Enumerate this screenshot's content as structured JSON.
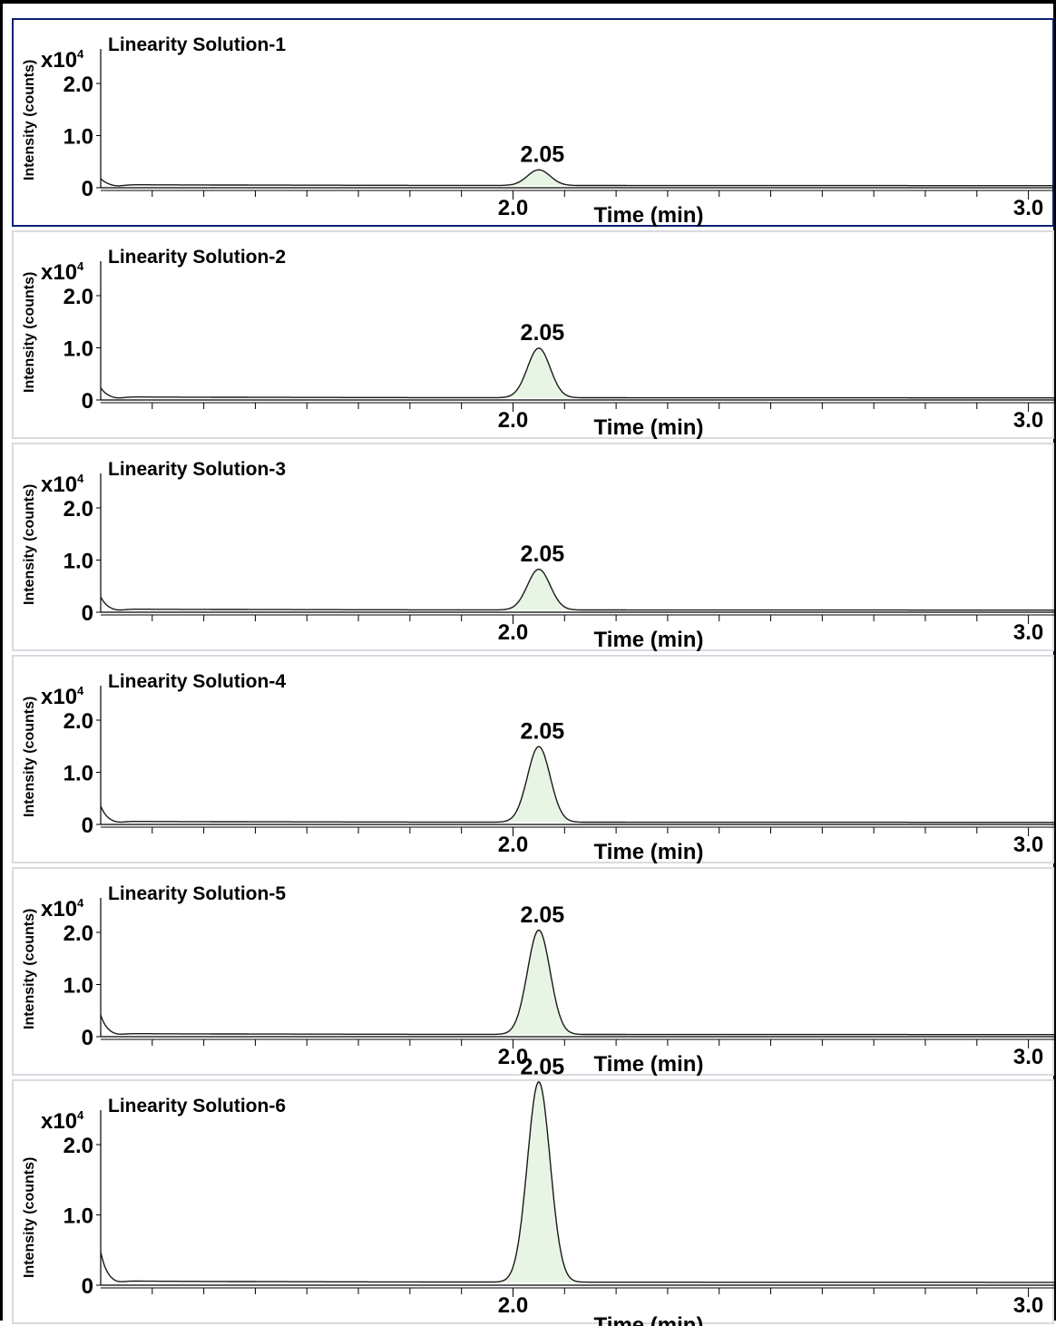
{
  "chart_data": [
    {
      "type": "line",
      "title": "Linearity Solution-1",
      "ylabel": "Intensity (counts)",
      "xlabel": "Time (min)",
      "y_scale_label": "x10",
      "y_scale_exponent": "4",
      "x_tick_labels": [
        "2.0",
        "3.0"
      ],
      "y_tick_labels": [
        "0",
        "1.0",
        "2.0"
      ],
      "peak": {
        "label": "2.05",
        "x": 2.05,
        "height": 0.3
      },
      "ylim": [
        0,
        2.0
      ],
      "selected": true
    },
    {
      "type": "line",
      "title": "Linearity Solution-2",
      "ylabel": "Intensity (counts)",
      "xlabel": "Time (min)",
      "y_scale_label": "x10",
      "y_scale_exponent": "4",
      "x_tick_labels": [
        "2.0",
        "3.0"
      ],
      "y_tick_labels": [
        "0",
        "1.0",
        "2.0"
      ],
      "peak": {
        "label": "2.05",
        "x": 2.05,
        "height": 0.95
      },
      "ylim": [
        0,
        2.0
      ],
      "selected": false
    },
    {
      "type": "line",
      "title": "Linearity Solution-3",
      "ylabel": "Intensity (counts)",
      "xlabel": "Time (min)",
      "y_scale_label": "x10",
      "y_scale_exponent": "4",
      "x_tick_labels": [
        "2.0",
        "3.0"
      ],
      "y_tick_labels": [
        "0",
        "1.0",
        "2.0"
      ],
      "peak": {
        "label": "2.05",
        "x": 2.05,
        "height": 0.78
      },
      "ylim": [
        0,
        2.0
      ],
      "selected": false
    },
    {
      "type": "line",
      "title": "Linearity Solution-4",
      "ylabel": "Intensity (counts)",
      "xlabel": "Time (min)",
      "y_scale_label": "x10",
      "y_scale_exponent": "4",
      "x_tick_labels": [
        "2.0",
        "3.0"
      ],
      "y_tick_labels": [
        "0",
        "1.0",
        "2.0"
      ],
      "peak": {
        "label": "2.05",
        "x": 2.05,
        "height": 1.45
      },
      "ylim": [
        0,
        2.0
      ],
      "selected": false
    },
    {
      "type": "line",
      "title": "Linearity Solution-5",
      "ylabel": "Intensity (counts)",
      "xlabel": "Time (min)",
      "y_scale_label": "x10",
      "y_scale_exponent": "4",
      "x_tick_labels": [
        "2.0",
        "3.0"
      ],
      "y_tick_labels": [
        "0",
        "1.0",
        "2.0"
      ],
      "peak": {
        "label": "2.05",
        "x": 2.05,
        "height": 2.0
      },
      "ylim": [
        0,
        2.0
      ],
      "selected": false
    },
    {
      "type": "line",
      "title": "Linearity Solution-6",
      "ylabel": "Intensity (counts)",
      "xlabel": "Time (min)",
      "y_scale_label": "x10",
      "y_scale_exponent": "4",
      "x_tick_labels": [
        "2.0",
        "3.0"
      ],
      "y_tick_labels": [
        "0",
        "1.0",
        "2.0"
      ],
      "peak": {
        "label": "2.05",
        "x": 2.05,
        "height": 2.85
      },
      "ylim": [
        0,
        2.0
      ],
      "selected": false
    }
  ],
  "colors": {
    "trace": "#1a1a1a",
    "peak_fill": "#e8f5e4",
    "selected_border": "#0b1f73",
    "panel_border": "#d8dbe0"
  }
}
